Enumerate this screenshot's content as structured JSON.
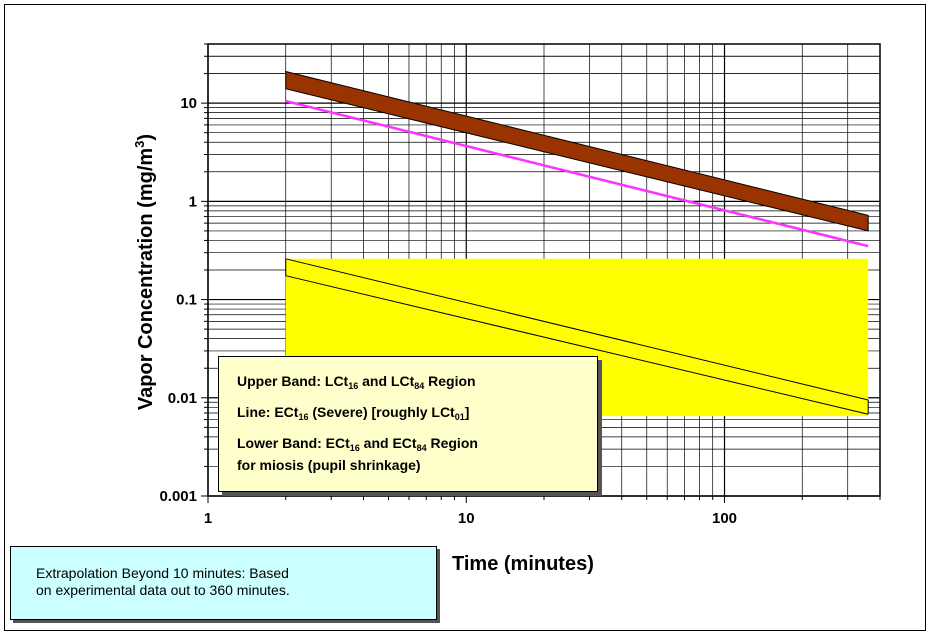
{
  "chart_data": {
    "type": "line",
    "x_scale": "log",
    "y_scale": "log",
    "xlim": [
      1,
      400
    ],
    "ylim": [
      0.001,
      40
    ],
    "x_ticks": [
      "1",
      "10",
      "100"
    ],
    "y_ticks": [
      "0.001",
      "0.01",
      "0.1",
      "1",
      "10"
    ],
    "xlabel": "Time (minutes)",
    "ylabel": "Vapor Concentration (mg/m³)",
    "grid": true,
    "series": [
      {
        "name": "Upper Band: LCt16 and LCt84 Region",
        "kind": "band",
        "color": "#993300",
        "x": [
          2,
          360
        ],
        "upper": [
          21,
          0.72
        ],
        "lower": [
          14,
          0.5
        ]
      },
      {
        "name": "Line: ECt16 (Severe) [roughly LCt01]",
        "kind": "line",
        "color": "#ff33ff",
        "x": [
          2,
          360
        ],
        "y": [
          10.5,
          0.35
        ]
      },
      {
        "name": "Lower Band: ECt16 and ECt84 Region for miosis (pupil shrinkage)",
        "kind": "band",
        "color": "#ffff00",
        "x": [
          2,
          360
        ],
        "upper": [
          0.26,
          0.26
        ],
        "lower": [
          0.0065,
          0.0065
        ],
        "diagonal_upper": [
          0.26,
          0.0095
        ],
        "diagonal_lower": [
          0.175,
          0.0068
        ]
      }
    ]
  },
  "legend": {
    "upper_band": "Upper Band:  LCt16 and LCt84 Region",
    "line": "Line:  ECt16 (Severe) [roughly LCt01]",
    "lower_band_1": "Lower Band:  ECt16 and ECt84 Region",
    "lower_band_2": "for miosis (pupil shrinkage)"
  },
  "note": {
    "line1": "Extrapolation Beyond 10 minutes:  Based",
    "line2": "on experimental data out to 360 minutes."
  },
  "colors": {
    "upper_band": "#993300",
    "line": "#ff33ff",
    "lower_band": "#ffff00",
    "legend_bg": "#ffffcc",
    "note_bg": "#ccffff"
  }
}
